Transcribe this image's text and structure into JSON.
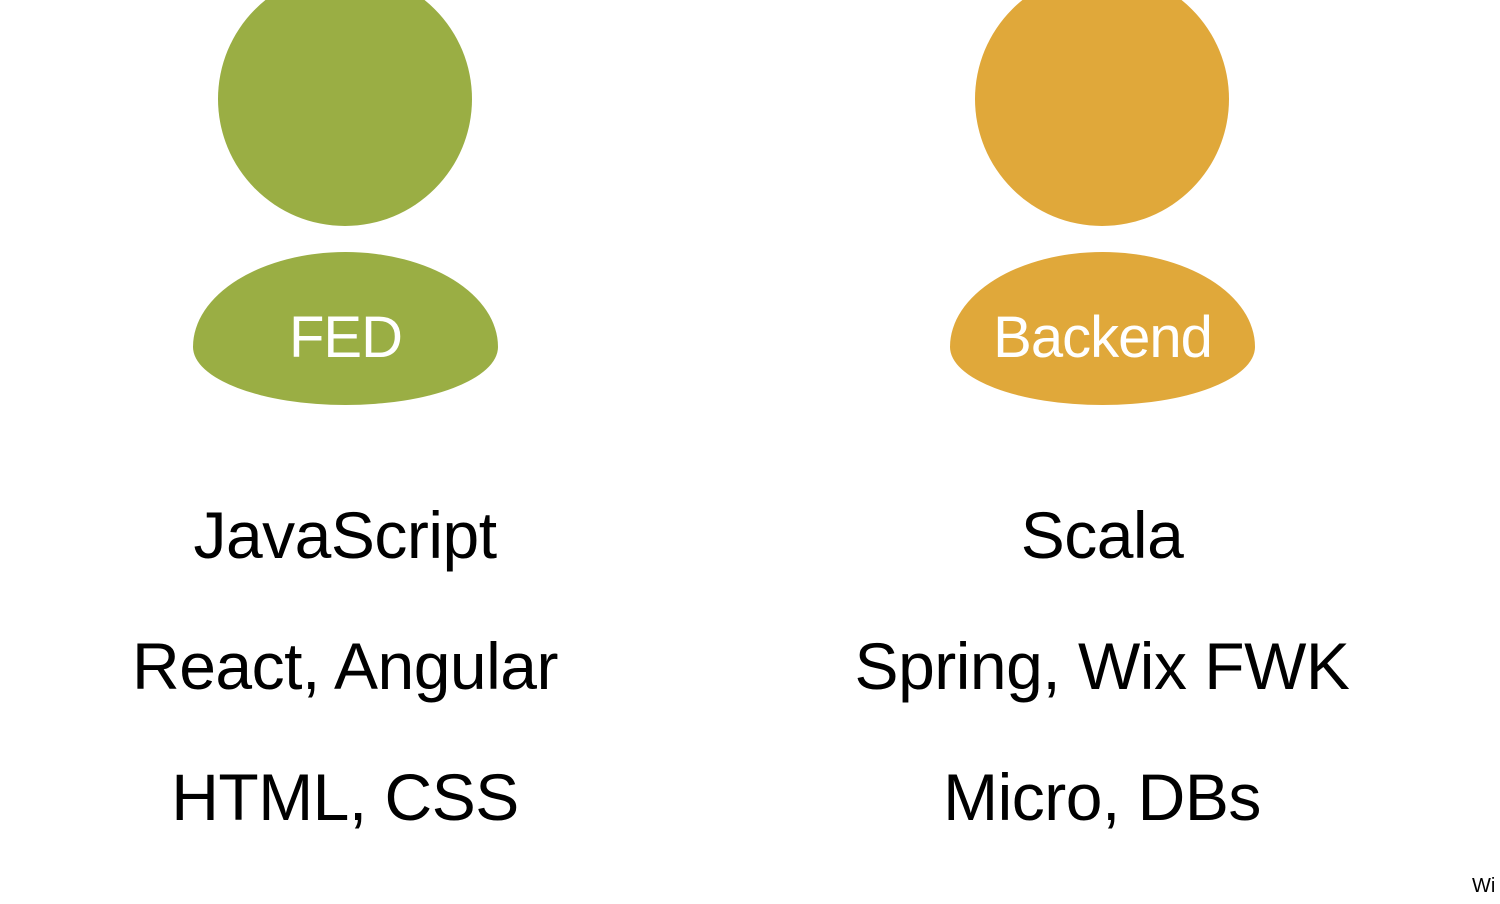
{
  "colors": {
    "fed": "#9aae44",
    "backend": "#e0a83a"
  },
  "roles": [
    {
      "label": "FED",
      "icon": "person-icon",
      "skills": [
        "JavaScript",
        "React, Angular",
        "HTML, CSS"
      ]
    },
    {
      "label": "Backend",
      "icon": "person-icon",
      "skills": [
        "Scala",
        "Spring, Wix FWK",
        "Micro, DBs"
      ]
    }
  ],
  "corner_mark": "Wi"
}
